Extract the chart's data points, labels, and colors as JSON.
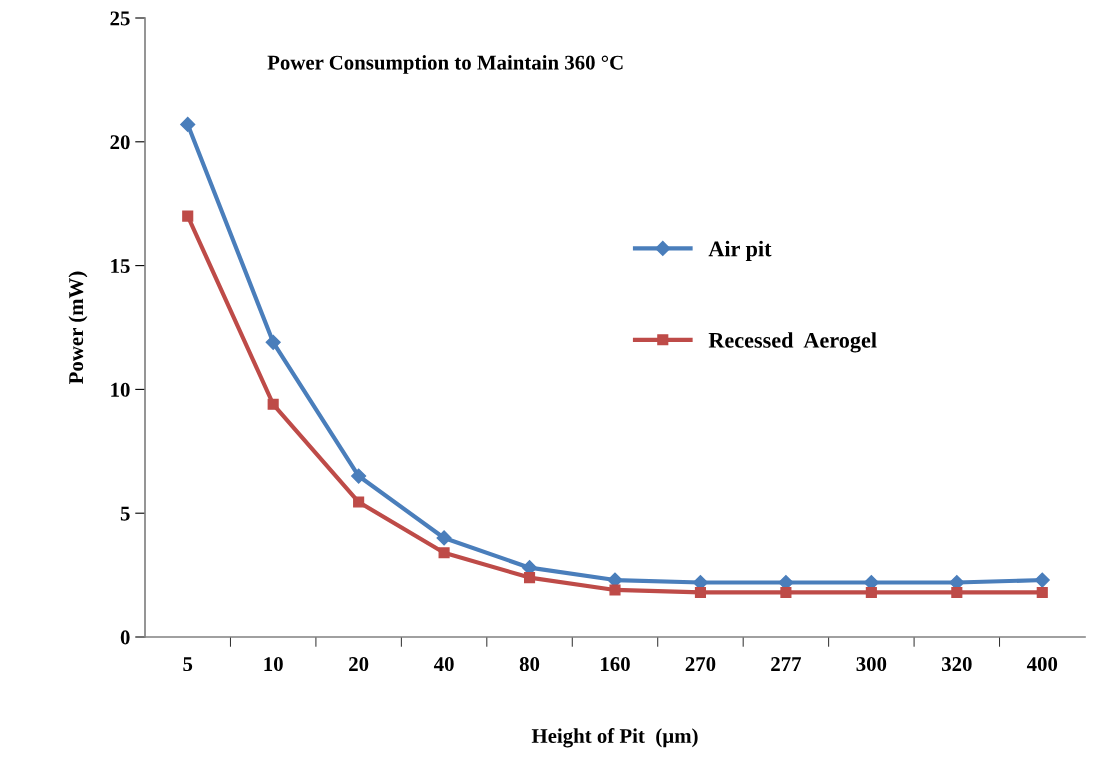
{
  "chart_data": {
    "type": "line",
    "title": "Power Consumption to Maintain 360 °C",
    "xlabel": "Height of Pit  (µm)",
    "ylabel": "Power (mW)",
    "categories": [
      "5",
      "10",
      "20",
      "40",
      "80",
      "160",
      "270",
      "277",
      "300",
      "320",
      "400"
    ],
    "series": [
      {
        "name": "Air pit",
        "color": "#4a7ebb",
        "marker": "diamond",
        "values": [
          20.7,
          11.9,
          6.5,
          4.0,
          2.8,
          2.3,
          2.2,
          2.2,
          2.2,
          2.2,
          2.3
        ]
      },
      {
        "name": "Recessed  Aerogel",
        "color": "#be4b48",
        "marker": "square",
        "values": [
          17.0,
          9.4,
          5.45,
          3.4,
          2.4,
          1.9,
          1.8,
          1.8,
          1.8,
          1.8,
          1.8
        ]
      }
    ],
    "ylim": [
      0,
      25
    ],
    "yticks": [
      0,
      5,
      10,
      15,
      20,
      25
    ],
    "grid": false,
    "legend": "right",
    "line_style": "solid"
  }
}
